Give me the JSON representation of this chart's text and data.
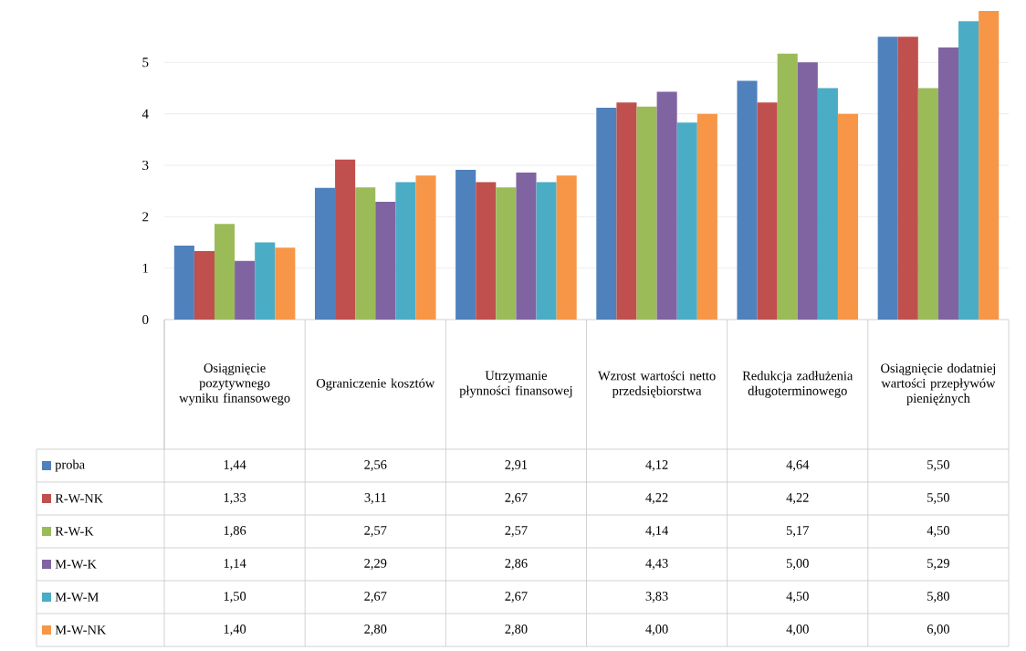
{
  "chart_data": {
    "type": "bar",
    "categories": [
      "Osiągnięcie pozytywnego wyniku finansowego",
      "Ograniczenie kosztów",
      "Utrzymanie płynności finansowej",
      "Wzrost wartości netto przedsiębiorstwa",
      "Redukcja zadłużenia długoterminowego",
      "Osiągnięcie dodatniej wartości przepływów pieniężnych"
    ],
    "series": [
      {
        "name": "proba",
        "color": "#4f81bd",
        "values": [
          1.44,
          2.56,
          2.91,
          4.12,
          4.64,
          5.5
        ],
        "value_labels": [
          "1,44",
          "2,56",
          "2,91",
          "4,12",
          "4,64",
          "5,50"
        ]
      },
      {
        "name": "R-W-NK",
        "color": "#c0504d",
        "values": [
          1.33,
          3.11,
          2.67,
          4.22,
          4.22,
          5.5
        ],
        "value_labels": [
          "1,33",
          "3,11",
          "2,67",
          "4,22",
          "4,22",
          "5,50"
        ]
      },
      {
        "name": "R-W-K",
        "color": "#9bbb59",
        "values": [
          1.86,
          2.57,
          2.57,
          4.14,
          5.17,
          4.5
        ],
        "value_labels": [
          "1,86",
          "2,57",
          "2,57",
          "4,14",
          "5,17",
          "4,50"
        ]
      },
      {
        "name": "M-W-K",
        "color": "#8064a2",
        "values": [
          1.14,
          2.29,
          2.86,
          4.43,
          5.0,
          5.29
        ],
        "value_labels": [
          "1,14",
          "2,29",
          "2,86",
          "4,43",
          "5,00",
          "5,29"
        ]
      },
      {
        "name": "M-W-M",
        "color": "#4bacc6",
        "values": [
          1.5,
          2.67,
          2.67,
          3.83,
          4.5,
          5.8
        ],
        "value_labels": [
          "1,50",
          "2,67",
          "2,67",
          "3,83",
          "4,50",
          "5,80"
        ]
      },
      {
        "name": "M-W-NK",
        "color": "#f79646",
        "values": [
          1.4,
          2.8,
          2.8,
          4.0,
          4.0,
          6.0
        ],
        "value_labels": [
          "1,40",
          "2,80",
          "2,80",
          "4,00",
          "4,00",
          "6,00"
        ]
      }
    ],
    "ylim": [
      0,
      6
    ],
    "yticks": [
      0,
      1,
      2,
      3,
      4,
      5
    ],
    "grid": "y",
    "legend": "bottom"
  }
}
